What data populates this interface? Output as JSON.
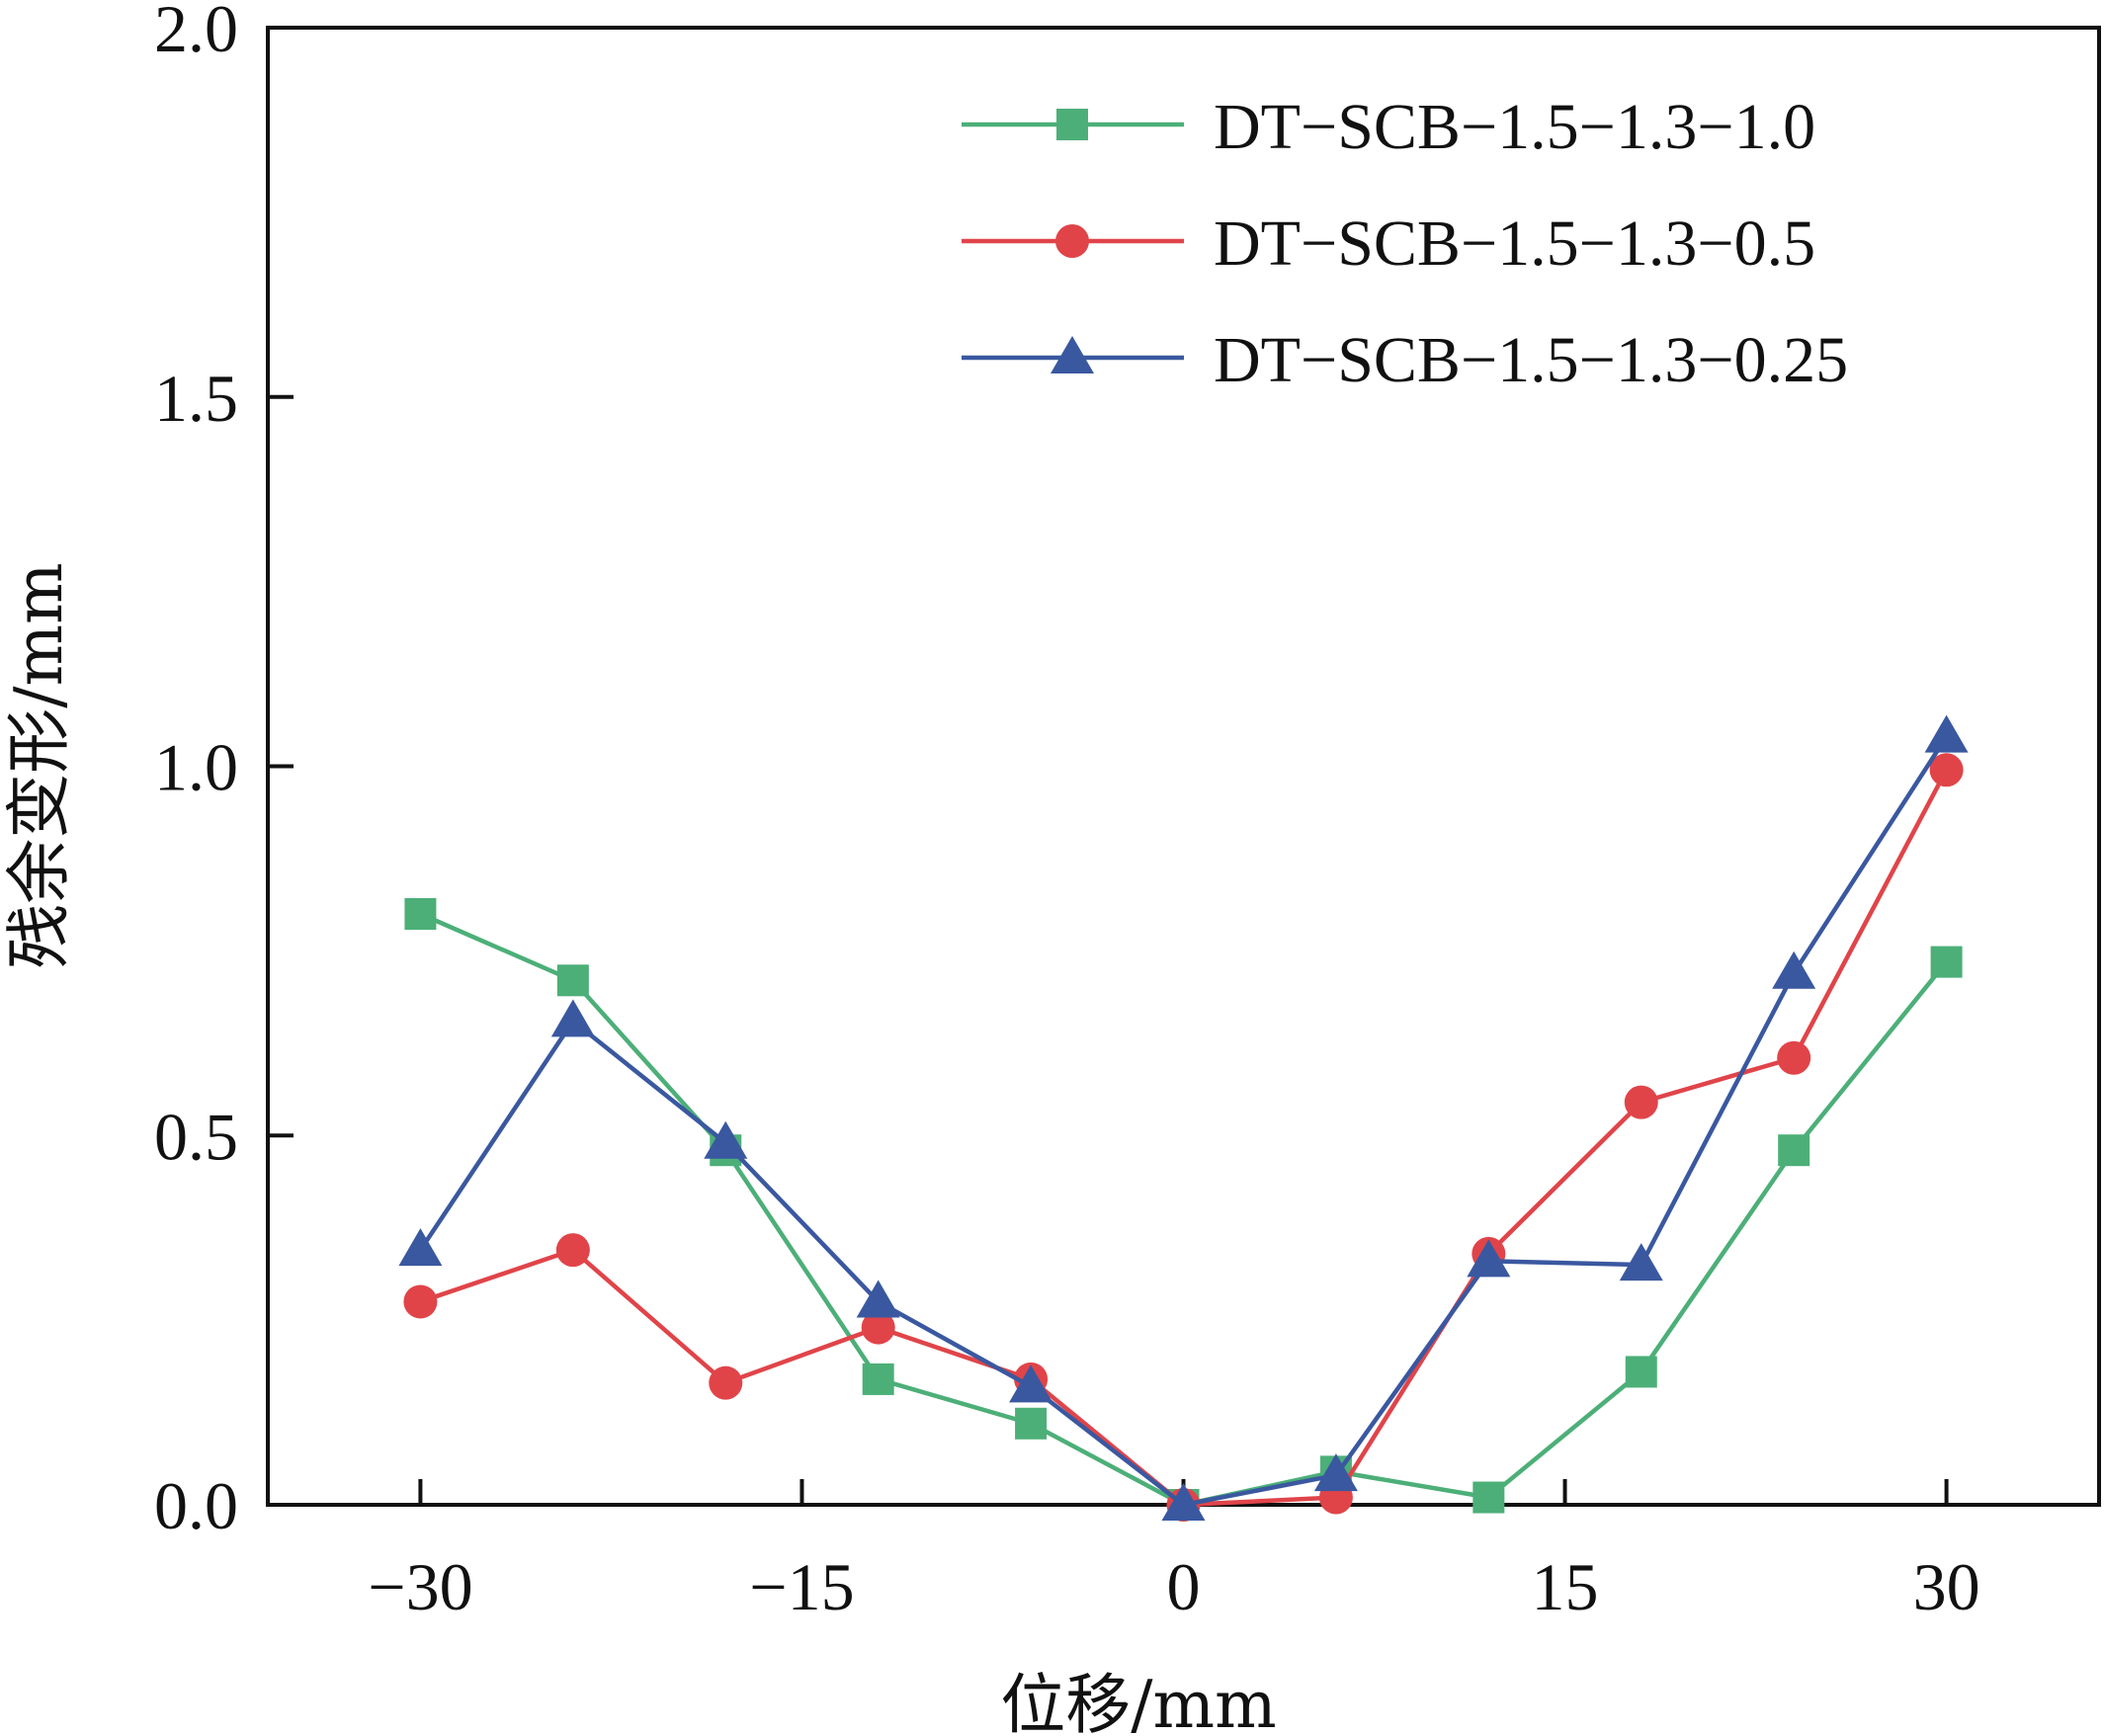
{
  "chart_data": {
    "type": "line",
    "title": "",
    "xlabel": "位移/mm",
    "ylabel": "残余变形/mm",
    "xlim": [
      -36,
      36
    ],
    "ylim": [
      0,
      2.0
    ],
    "xticks": [
      -30,
      -15,
      0,
      15,
      30
    ],
    "xtick_labels": [
      "−30",
      "−15",
      "0",
      "15",
      "30"
    ],
    "yticks": [
      0,
      0.5,
      1.0,
      1.5,
      2.0
    ],
    "ytick_labels": [
      "0.0",
      "0.5",
      "1.0",
      "1.5",
      "2.0"
    ],
    "grid": false,
    "legend_position": "top-right",
    "series": [
      {
        "name": "DT−SCB−1.5−1.3−1.0",
        "color": "#4caf78",
        "marker": "square",
        "x": [
          -30,
          -24,
          -18,
          -12,
          -6,
          0,
          6,
          12,
          18,
          24,
          30
        ],
        "y": [
          0.8,
          0.71,
          0.48,
          0.17,
          0.11,
          0.0,
          0.045,
          0.01,
          0.18,
          0.48,
          0.735
        ]
      },
      {
        "name": "DT−SCB−1.5−1.3−0.5",
        "color": "#e04449",
        "marker": "circle",
        "x": [
          -30,
          -24,
          -18,
          -12,
          -6,
          0,
          6,
          12,
          18,
          24,
          30
        ],
        "y": [
          0.275,
          0.345,
          0.165,
          0.24,
          0.17,
          0.0,
          0.01,
          0.34,
          0.545,
          0.605,
          0.995
        ]
      },
      {
        "name": "DT−SCB−1.5−1.3−0.25",
        "color": "#3a58a0",
        "marker": "triangle",
        "x": [
          -30,
          -24,
          -18,
          -12,
          -6,
          0,
          6,
          12,
          18,
          24,
          30
        ],
        "y": [
          0.345,
          0.655,
          0.49,
          0.275,
          0.16,
          0.0,
          0.04,
          0.33,
          0.325,
          0.72,
          1.04
        ]
      }
    ]
  }
}
